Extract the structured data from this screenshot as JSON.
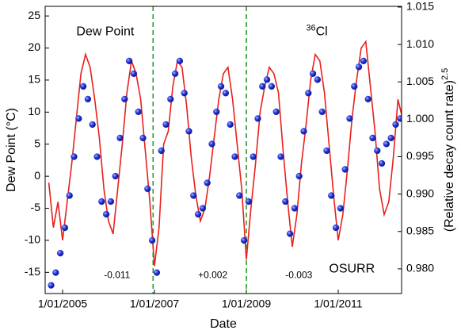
{
  "chart_data": {
    "type": "line",
    "xlabel": "Date",
    "ylabel": "Dew Point (°C)",
    "y2label": {
      "text": "(Relative decay count rate)",
      "sup": "2.5"
    },
    "annotations": [
      {
        "text": "Dew Point",
        "x": 2005.3,
        "y": 22.5,
        "color": "#000000"
      },
      {
        "sup": "36",
        "text": "Cl",
        "x": 2010.3,
        "y": 22.5,
        "color": "#000000"
      },
      {
        "text": "-0.011",
        "x": 2005.9,
        "y": -15.5,
        "color": "#2e8b1f"
      },
      {
        "text": "+0.002",
        "x": 2007.95,
        "y": -15.5,
        "color": "#2e8b1f"
      },
      {
        "text": "-0.003",
        "x": 2009.85,
        "y": -15.5,
        "color": "#2e8b1f"
      },
      {
        "text": "OSURR",
        "x": 2010.8,
        "y": -14.5,
        "color": "#000000"
      }
    ],
    "vlines": {
      "color": "#2e9b2e",
      "x": [
        2006.97,
        2009.0
      ]
    },
    "xlim": [
      2004.62,
      2012.38
    ],
    "xticks": [
      {
        "value": 2005,
        "label": "1/01/2005"
      },
      {
        "value": 2007,
        "label": "1/01/2007"
      },
      {
        "value": 2009,
        "label": "1/01/2009"
      },
      {
        "value": 2011,
        "label": "1/01/2011"
      }
    ],
    "ylim": [
      -18.3,
      26.5
    ],
    "yticks": [
      -15,
      -10,
      -5,
      0,
      5,
      10,
      15,
      20,
      25
    ],
    "y2lim": [
      0.9767,
      1.0151
    ],
    "y2ticks": [
      {
        "value": 0.98,
        "label": "0.980"
      },
      0.985,
      {
        "value": 0.99,
        "label": "0.990"
      },
      0.995,
      {
        "value": 1.0,
        "label": "1.000"
      },
      1.005,
      {
        "value": 1.01,
        "label": "1.010"
      },
      1.015
    ],
    "series": [
      {
        "type": "line",
        "color": "#e8201c",
        "x": [
          2004.7,
          2004.8,
          2004.9,
          2005.0,
          2005.1,
          2005.2,
          2005.3,
          2005.4,
          2005.5,
          2005.6,
          2005.7,
          2005.8,
          2005.9,
          2006.0,
          2006.1,
          2006.2,
          2006.3,
          2006.4,
          2006.5,
          2006.6,
          2006.7,
          2006.8,
          2006.9,
          2007.0,
          2007.1,
          2007.2,
          2007.3,
          2007.4,
          2007.5,
          2007.6,
          2007.7,
          2007.8,
          2007.9,
          2008.0,
          2008.1,
          2008.2,
          2008.3,
          2008.4,
          2008.5,
          2008.6,
          2008.7,
          2008.8,
          2008.9,
          2009.0,
          2009.1,
          2009.2,
          2009.3,
          2009.4,
          2009.5,
          2009.6,
          2009.7,
          2009.8,
          2009.9,
          2010.0,
          2010.1,
          2010.2,
          2010.3,
          2010.4,
          2010.5,
          2010.6,
          2010.7,
          2010.8,
          2010.9,
          2011.0,
          2011.1,
          2011.2,
          2011.3,
          2011.4,
          2011.5,
          2011.6,
          2011.7,
          2011.8,
          2011.9,
          2012.0,
          2012.1,
          2012.2,
          2012.3,
          2012.4
        ],
        "values": [
          -1,
          -8,
          -4,
          -10,
          -4,
          2,
          9,
          16,
          19,
          17,
          12,
          6,
          -2,
          -7,
          -9,
          -2,
          5,
          13,
          18,
          16,
          12,
          4,
          -4,
          -14,
          -8,
          5,
          7,
          14,
          18,
          17,
          11,
          3,
          -3,
          -7,
          -5,
          0,
          6,
          12,
          16,
          17,
          12,
          5,
          -2,
          -13,
          -5,
          2,
          10,
          14,
          17,
          16,
          13,
          4,
          -4,
          -11,
          -6,
          2,
          8,
          15,
          19,
          18,
          13,
          5,
          -3,
          -10,
          -6,
          1,
          9,
          15,
          20,
          21,
          14,
          7,
          -2,
          -6,
          -4,
          3,
          12,
          9
        ]
      },
      {
        "type": "scatter",
        "axis": "y2",
        "color": "#2233dd",
        "x": [
          2004.75,
          2004.85,
          2004.95,
          2005.05,
          2005.15,
          2005.25,
          2005.35,
          2005.45,
          2005.55,
          2005.65,
          2005.75,
          2005.85,
          2005.95,
          2006.05,
          2006.15,
          2006.25,
          2006.35,
          2006.45,
          2006.55,
          2006.65,
          2006.75,
          2006.85,
          2006.95,
          2007.05,
          2007.15,
          2007.25,
          2007.35,
          2007.45,
          2007.55,
          2007.65,
          2007.75,
          2007.85,
          2007.95,
          2008.05,
          2008.15,
          2008.25,
          2008.35,
          2008.45,
          2008.55,
          2008.65,
          2008.75,
          2008.85,
          2008.95,
          2009.05,
          2009.15,
          2009.25,
          2009.35,
          2009.45,
          2009.55,
          2009.65,
          2009.75,
          2009.85,
          2009.95,
          2010.05,
          2010.15,
          2010.25,
          2010.35,
          2010.45,
          2010.55,
          2010.65,
          2010.75,
          2010.85,
          2010.95,
          2011.05,
          2011.15,
          2011.25,
          2011.35,
          2011.45,
          2011.55,
          2011.65,
          2011.75,
          2011.85,
          2011.95,
          2012.05,
          2012.15,
          2012.25,
          2012.35
        ],
        "values": [
          0.9778,
          0.9795,
          0.9821,
          0.9855,
          0.9898,
          0.995,
          1.0001,
          1.0044,
          1.0027,
          0.9993,
          0.995,
          0.989,
          0.9873,
          0.989,
          0.9924,
          0.9975,
          1.0027,
          1.0078,
          1.0061,
          1.001,
          0.9975,
          0.9907,
          0.9838,
          0.9795,
          0.9958,
          0.9993,
          1.0027,
          1.0061,
          1.0078,
          1.0035,
          0.9984,
          0.9898,
          0.9873,
          0.9881,
          0.9915,
          0.9967,
          1.001,
          1.0044,
          1.0035,
          0.9993,
          0.995,
          0.9898,
          0.9838,
          0.989,
          0.995,
          1.0001,
          1.0044,
          1.0053,
          1.0044,
          1.001,
          0.995,
          0.989,
          0.9847,
          0.9881,
          0.9924,
          0.9984,
          1.0035,
          1.0061,
          1.0053,
          1.001,
          0.9958,
          0.9898,
          0.9855,
          0.9881,
          0.9933,
          1.0001,
          1.0044,
          1.007,
          1.0078,
          1.0027,
          0.9975,
          0.9958,
          0.9941,
          0.9967,
          0.9975,
          0.9993,
          1.0001
        ]
      }
    ]
  }
}
